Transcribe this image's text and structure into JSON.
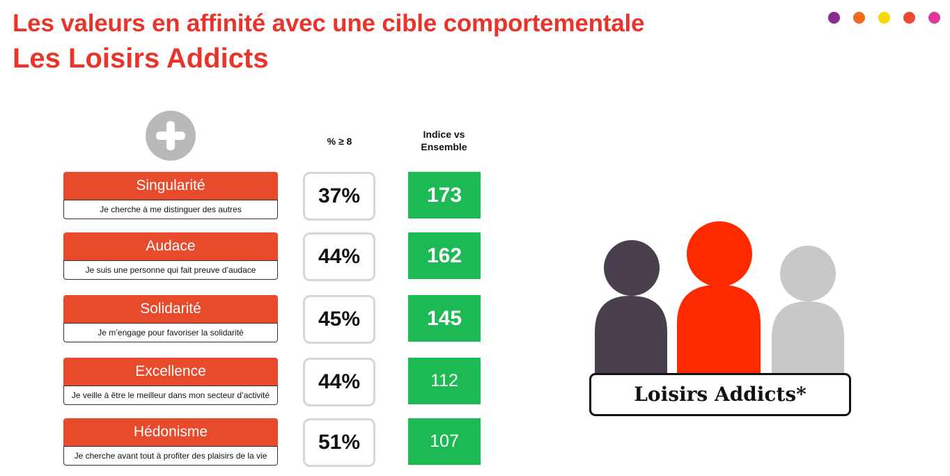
{
  "header": {
    "title": "Les valeurs en affinité avec une cible comportementale",
    "subtitle": "Les Loisirs Addicts",
    "dots": [
      "#8b2b8f",
      "#f06a20",
      "#f4d800",
      "#eb4a2e",
      "#e0389a"
    ]
  },
  "table": {
    "plus_icon": "plus-circle-icon",
    "col_pct_header": "% ≥ 8",
    "col_index_header_line1": "Indice vs",
    "col_index_header_line2": "Ensemble",
    "rows": [
      {
        "label": "Singularité",
        "desc": "Je cherche à me distinguer des autres",
        "pct": "37%",
        "index": "173",
        "index_bold": true
      },
      {
        "label": "Audace",
        "desc": "Je suis une personne qui fait preuve d’audace",
        "pct": "44%",
        "index": "162",
        "index_bold": true
      },
      {
        "label": "Solidarité",
        "desc": "Je m’engage pour favoriser la solidarité",
        "pct": "45%",
        "index": "145",
        "index_bold": true
      },
      {
        "label": "Excellence",
        "desc": "Je veille à être le meilleur dans mon secteur d’activité",
        "pct": "44%",
        "index": "112",
        "index_bold": false
      },
      {
        "label": "Hédonisme",
        "desc": "Je cherche avant tout à profiter des plaisirs de la vie",
        "pct": "51%",
        "index": "107",
        "index_bold": false
      }
    ]
  },
  "illustration": {
    "icon": "people-group-icon",
    "person_colors": [
      "#4a3f4c",
      "#ff2a00",
      "#c8c8c8"
    ],
    "label": "Loisirs Addicts*"
  },
  "colors": {
    "accent_red": "#e8342a",
    "label_red": "#e84b2c",
    "index_green": "#1db954"
  }
}
